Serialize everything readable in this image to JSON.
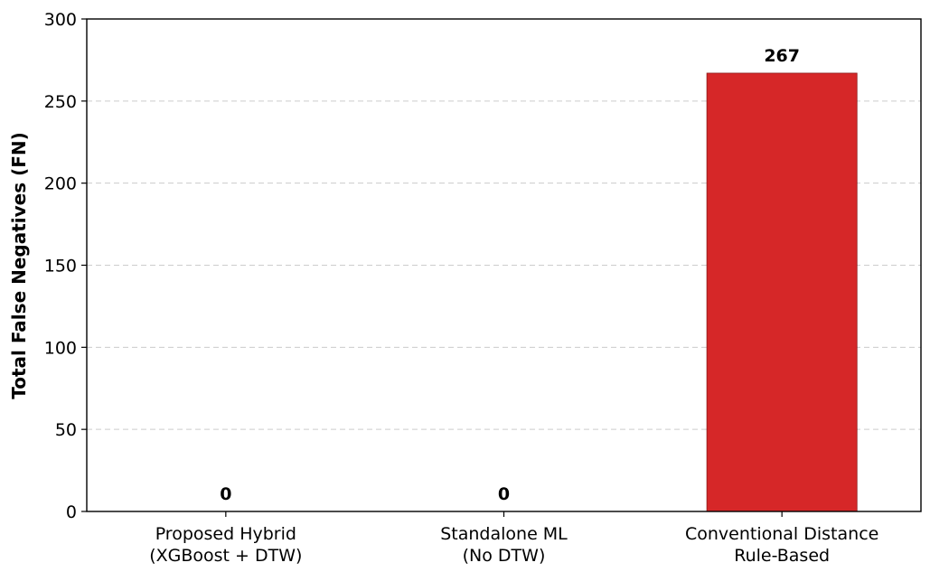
{
  "chart_data": {
    "type": "bar",
    "title": "",
    "xlabel": "",
    "ylabel": "Total False Negatives (FN)",
    "categories": [
      [
        "Proposed Hybrid",
        "(XGBoost + DTW)"
      ],
      [
        "Standalone ML",
        "(No DTW)"
      ],
      [
        "Conventional Distance",
        "Rule-Based"
      ]
    ],
    "values": [
      0,
      0,
      267
    ],
    "data_labels": [
      "0",
      "0",
      "267"
    ],
    "bar_colors": [
      "#d62728",
      "#d62728",
      "#d62728"
    ],
    "ylim": [
      0,
      300
    ],
    "yticks": [
      0,
      50,
      100,
      150,
      200,
      250,
      300
    ],
    "grid": "y-dashed",
    "legend": "none"
  }
}
